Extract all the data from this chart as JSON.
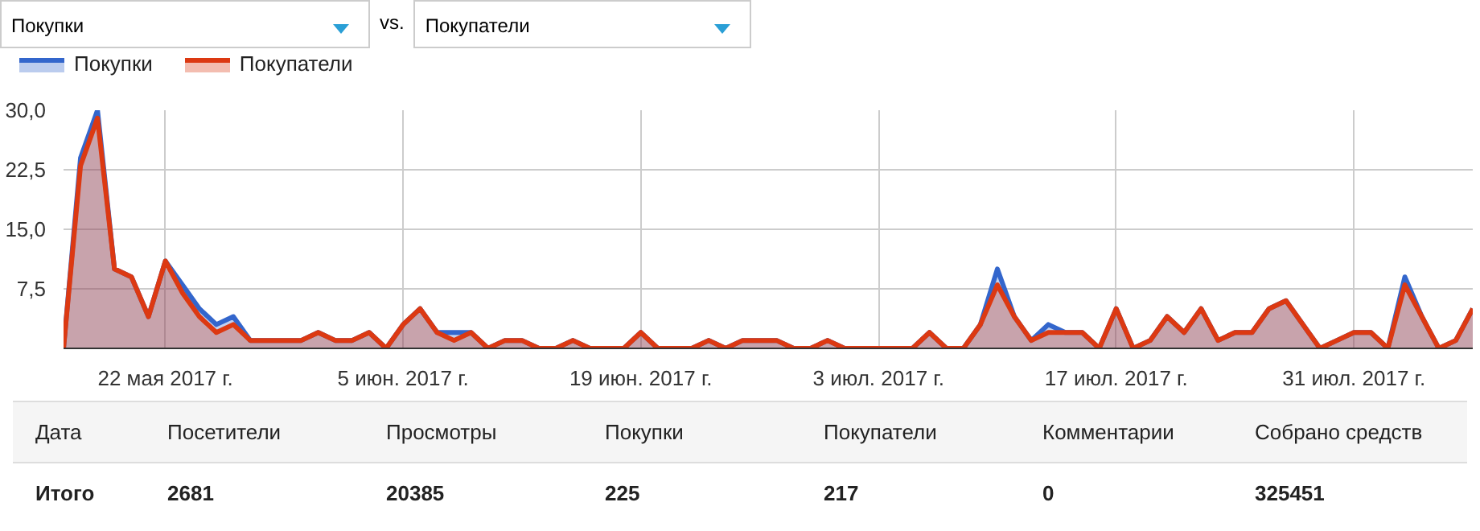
{
  "chart_data": {
    "type": "area",
    "x": [
      "2017-05-16",
      "2017-05-17",
      "2017-05-18",
      "2017-05-19",
      "2017-05-20",
      "2017-05-21",
      "2017-05-22",
      "2017-05-23",
      "2017-05-24",
      "2017-05-25",
      "2017-05-26",
      "2017-05-27",
      "2017-05-28",
      "2017-05-29",
      "2017-05-30",
      "2017-05-31",
      "2017-06-01",
      "2017-06-02",
      "2017-06-03",
      "2017-06-04",
      "2017-06-05",
      "2017-06-06",
      "2017-06-07",
      "2017-06-08",
      "2017-06-09",
      "2017-06-10",
      "2017-06-11",
      "2017-06-12",
      "2017-06-13",
      "2017-06-14",
      "2017-06-15",
      "2017-06-16",
      "2017-06-17",
      "2017-06-18",
      "2017-06-19",
      "2017-06-20",
      "2017-06-21",
      "2017-06-22",
      "2017-06-23",
      "2017-06-24",
      "2017-06-25",
      "2017-06-26",
      "2017-06-27",
      "2017-06-28",
      "2017-06-29",
      "2017-06-30",
      "2017-07-01",
      "2017-07-02",
      "2017-07-03",
      "2017-07-04",
      "2017-07-05",
      "2017-07-06",
      "2017-07-07",
      "2017-07-08",
      "2017-07-09",
      "2017-07-10",
      "2017-07-11",
      "2017-07-12",
      "2017-07-13",
      "2017-07-14",
      "2017-07-15",
      "2017-07-16",
      "2017-07-17",
      "2017-07-18",
      "2017-07-19",
      "2017-07-20",
      "2017-07-21",
      "2017-07-22",
      "2017-07-23",
      "2017-07-24",
      "2017-07-25",
      "2017-07-26",
      "2017-07-27",
      "2017-07-28",
      "2017-07-29",
      "2017-07-30",
      "2017-07-31",
      "2017-08-01",
      "2017-08-02",
      "2017-08-03",
      "2017-08-04",
      "2017-08-05",
      "2017-08-06",
      "2017-08-07"
    ],
    "series": [
      {
        "name": "Покупки",
        "color": "#3366cc",
        "values": [
          0,
          24,
          30,
          10,
          9,
          4,
          11,
          8,
          5,
          3,
          4,
          1,
          1,
          1,
          1,
          2,
          1,
          1,
          2,
          0,
          3,
          5,
          2,
          2,
          2,
          0,
          1,
          1,
          0,
          0,
          1,
          0,
          0,
          0,
          2,
          0,
          0,
          0,
          1,
          0,
          1,
          1,
          1,
          0,
          0,
          1,
          0,
          0,
          0,
          0,
          0,
          2,
          0,
          0,
          3,
          10,
          4,
          1,
          3,
          2,
          2,
          0,
          5,
          0,
          1,
          4,
          2,
          5,
          1,
          2,
          2,
          5,
          6,
          3,
          0,
          1,
          2,
          2,
          0,
          9,
          4,
          0,
          1,
          5
        ]
      },
      {
        "name": "Покупатели",
        "color": "#dc3912",
        "values": [
          0,
          23,
          29,
          10,
          9,
          4,
          11,
          7,
          4,
          2,
          3,
          1,
          1,
          1,
          1,
          2,
          1,
          1,
          2,
          0,
          3,
          5,
          2,
          1,
          2,
          0,
          1,
          1,
          0,
          0,
          1,
          0,
          0,
          0,
          2,
          0,
          0,
          0,
          1,
          0,
          1,
          1,
          1,
          0,
          0,
          1,
          0,
          0,
          0,
          0,
          0,
          2,
          0,
          0,
          3,
          8,
          4,
          1,
          2,
          2,
          2,
          0,
          5,
          0,
          1,
          4,
          2,
          5,
          1,
          2,
          2,
          5,
          6,
          3,
          0,
          1,
          2,
          2,
          0,
          8,
          4,
          0,
          1,
          5
        ]
      }
    ],
    "xlim": [
      "2017-05-16",
      "2017-08-07"
    ],
    "xticks": [
      {
        "value": "2017-05-22",
        "label": "22 мая 2017 г."
      },
      {
        "value": "2017-06-05",
        "label": "5 июн. 2017 г."
      },
      {
        "value": "2017-06-19",
        "label": "19 июн. 2017 г."
      },
      {
        "value": "2017-07-03",
        "label": "3 июл. 2017 г."
      },
      {
        "value": "2017-07-17",
        "label": "17 июл. 2017 г."
      },
      {
        "value": "2017-07-31",
        "label": "31 июл. 2017 г."
      }
    ],
    "ylim": [
      0,
      30
    ],
    "yticks": [
      {
        "value": 7.5,
        "label": "7,5"
      },
      {
        "value": 15,
        "label": "15,0"
      },
      {
        "value": 22.5,
        "label": "22,5"
      },
      {
        "value": 30,
        "label": "30,0"
      }
    ],
    "grid": true,
    "legend": "top left",
    "annotations": [
      "Покупки",
      "vs.",
      "Покупатели",
      "Дата",
      "Посетители",
      "Просмотры",
      "Покупки",
      "Покупатели",
      "Комментарии",
      "Собрано средств",
      "Итого",
      "2681",
      "20385",
      "225",
      "217",
      "0",
      "325451"
    ]
  }
}
